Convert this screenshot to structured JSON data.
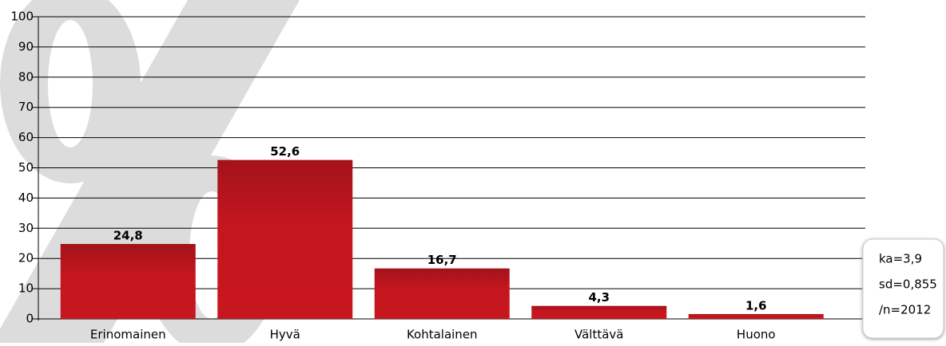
{
  "chart_data": {
    "type": "bar",
    "categories": [
      "Erinomainen",
      "Hyvä",
      "Kohtalainen",
      "Välttävä",
      "Huono"
    ],
    "values": [
      24.8,
      52.6,
      16.7,
      4.3,
      1.6
    ],
    "value_labels": [
      "24,8",
      "52,6",
      "16,7",
      "4,3",
      "1,6"
    ],
    "color": "#c8161e",
    "ylim": [
      0,
      100
    ],
    "yticks": [
      0,
      10,
      20,
      30,
      40,
      50,
      60,
      70,
      80,
      90,
      100
    ],
    "grid": true,
    "annotations": [
      "ka=3,9",
      "sd=0,855",
      "/n=2012"
    ]
  }
}
